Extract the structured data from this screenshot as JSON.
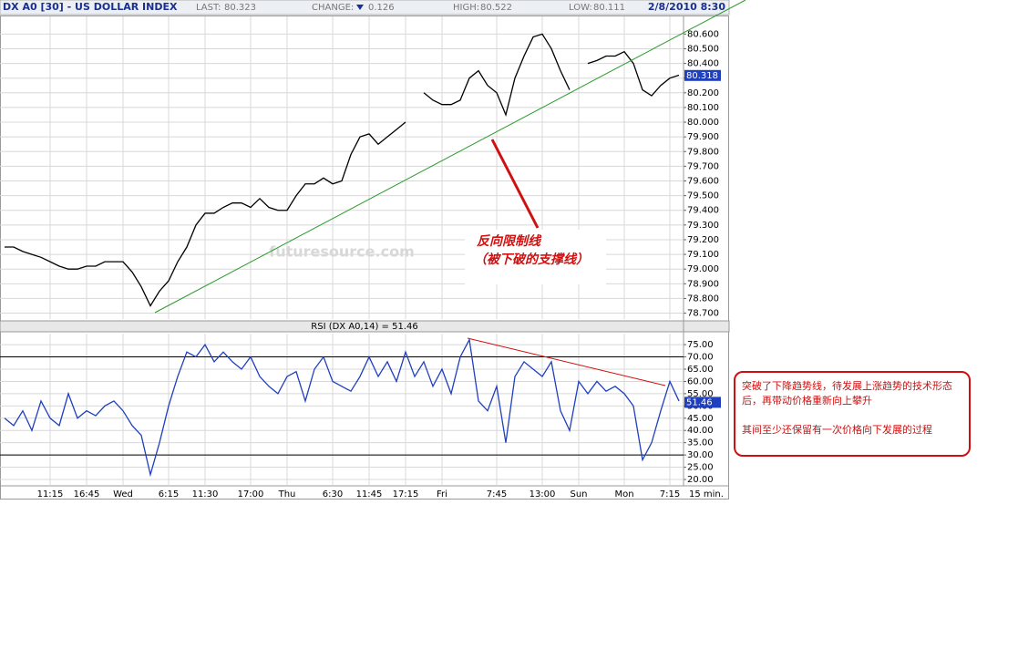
{
  "header": {
    "title": "DX A0 [30] - US DOLLAR INDEX",
    "last_label": "LAST:",
    "last": 80.323,
    "change_label": "CHANGE:",
    "change": 0.126,
    "high_label": "HIGH:",
    "high": 80.522,
    "low_label": "LOW:",
    "low": 80.111,
    "datetime": "2/8/2010 8:30"
  },
  "watermark": "futuresource.com",
  "annotations": {
    "support_line_title": "反向限制线",
    "support_line_note": "（被下破的支撑线）",
    "comment_1": "突破了下降趋势线，待发展上涨趋势的技术形态后，再带动价格重新向上攀升",
    "comment_2": "其间至少还保留有一次价格向下发展的过程"
  },
  "chart_data": [
    {
      "type": "line",
      "color": "#000000",
      "grid": true,
      "values": [
        79.15,
        79.15,
        79.12,
        79.1,
        79.08,
        79.05,
        79.02,
        79.0,
        79.0,
        79.02,
        79.02,
        79.05,
        79.05,
        79.05,
        78.98,
        78.88,
        78.75,
        78.85,
        78.92,
        79.05,
        79.15,
        79.3,
        79.38,
        79.38,
        79.42,
        79.45,
        79.45,
        79.42,
        79.48,
        79.42,
        79.4,
        79.4,
        79.5,
        79.58,
        79.58,
        79.62,
        79.58,
        79.6,
        79.78,
        79.9,
        79.92,
        79.85,
        79.9,
        79.95,
        80.0,
        null,
        80.2,
        80.15,
        80.12,
        80.12,
        80.15,
        80.3,
        80.35,
        80.25,
        80.2,
        80.05,
        80.3,
        80.45,
        80.58,
        80.6,
        80.5,
        80.35,
        80.22,
        null,
        80.4,
        80.42,
        80.45,
        80.45,
        80.48,
        80.4,
        80.22,
        80.18,
        80.25,
        80.3,
        80.32
      ],
      "current_value": 80.318,
      "ylim": [
        78.66,
        80.72
      ],
      "yticks": [
        {
          "value": 78.7,
          "label": "78.700"
        },
        {
          "value": 78.8,
          "label": "78.800"
        },
        {
          "value": 78.9,
          "label": "78.900"
        },
        {
          "value": 79.0,
          "label": "79.000"
        },
        {
          "value": 79.1,
          "label": "79.100"
        },
        {
          "value": 79.2,
          "label": "79.200"
        },
        {
          "value": 79.3,
          "label": "79.300"
        },
        {
          "value": 79.4,
          "label": "79.400"
        },
        {
          "value": 79.5,
          "label": "79.500"
        },
        {
          "value": 79.6,
          "label": "79.600"
        },
        {
          "value": 79.7,
          "label": "79.700"
        },
        {
          "value": 79.8,
          "label": "79.800"
        },
        {
          "value": 79.9,
          "label": "79.900"
        },
        {
          "value": 80.0,
          "label": "80.000"
        },
        {
          "value": 80.1,
          "label": "80.100"
        },
        {
          "value": 80.2,
          "label": "80.200"
        },
        {
          "value": 80.3,
          "label": "80.300"
        },
        {
          "value": 80.4,
          "label": "80.400"
        },
        {
          "value": 80.5,
          "label": "80.500"
        },
        {
          "value": 80.6,
          "label": "80.600"
        }
      ]
    },
    {
      "type": "line",
      "color": "#1f3fbf",
      "grid": true,
      "title": "RSI (DX A0,14) = 51.46",
      "categories": [
        null,
        null,
        null,
        null,
        null,
        "11:15",
        null,
        null,
        null,
        "16:45",
        null,
        null,
        null,
        "Wed",
        null,
        null,
        null,
        null,
        "6:15",
        null,
        null,
        null,
        "11:30",
        null,
        null,
        null,
        null,
        "17:00",
        null,
        null,
        null,
        "Thu",
        null,
        null,
        null,
        null,
        "6:30",
        null,
        null,
        null,
        "11:45",
        null,
        null,
        null,
        "17:15",
        null,
        null,
        null,
        "Fri",
        null,
        null,
        null,
        null,
        null,
        "7:45",
        null,
        null,
        null,
        null,
        "13:00",
        null,
        null,
        null,
        "Sun",
        null,
        null,
        null,
        null,
        "Mon",
        null,
        null,
        null,
        null,
        "7:15",
        null
      ],
      "x_unit": "15 min.",
      "values": [
        45,
        42,
        48,
        40,
        52,
        45,
        42,
        55,
        45,
        48,
        46,
        50,
        52,
        48,
        42,
        38,
        22,
        35,
        50,
        62,
        72,
        70,
        75,
        68,
        72,
        68,
        65,
        70,
        62,
        58,
        55,
        62,
        64,
        52,
        65,
        70,
        60,
        58,
        56,
        62,
        70,
        62,
        68,
        60,
        72,
        62,
        68,
        58,
        65,
        55,
        70,
        77,
        52,
        48,
        58,
        35,
        62,
        68,
        65,
        62,
        68,
        48,
        40,
        60,
        55,
        60,
        56,
        58,
        55,
        50,
        28,
        35,
        48,
        60,
        52
      ],
      "current_value": 51.46,
      "reference_lines": [
        30,
        70
      ],
      "ylim": [
        17.4,
        79.5
      ],
      "yticks": [
        {
          "value": 20,
          "label": "20.00"
        },
        {
          "value": 25,
          "label": "25.00"
        },
        {
          "value": 30,
          "label": "30.00"
        },
        {
          "value": 35,
          "label": "35.00"
        },
        {
          "value": 40,
          "label": "40.00"
        },
        {
          "value": 45,
          "label": "45.00"
        },
        {
          "value": 50,
          "label": "50.00"
        },
        {
          "value": 55,
          "label": "55.00"
        },
        {
          "value": 60,
          "label": "60.00"
        },
        {
          "value": 65,
          "label": "65.00"
        },
        {
          "value": 70,
          "label": "70.00"
        },
        {
          "value": 75,
          "label": "75.00"
        }
      ]
    }
  ]
}
